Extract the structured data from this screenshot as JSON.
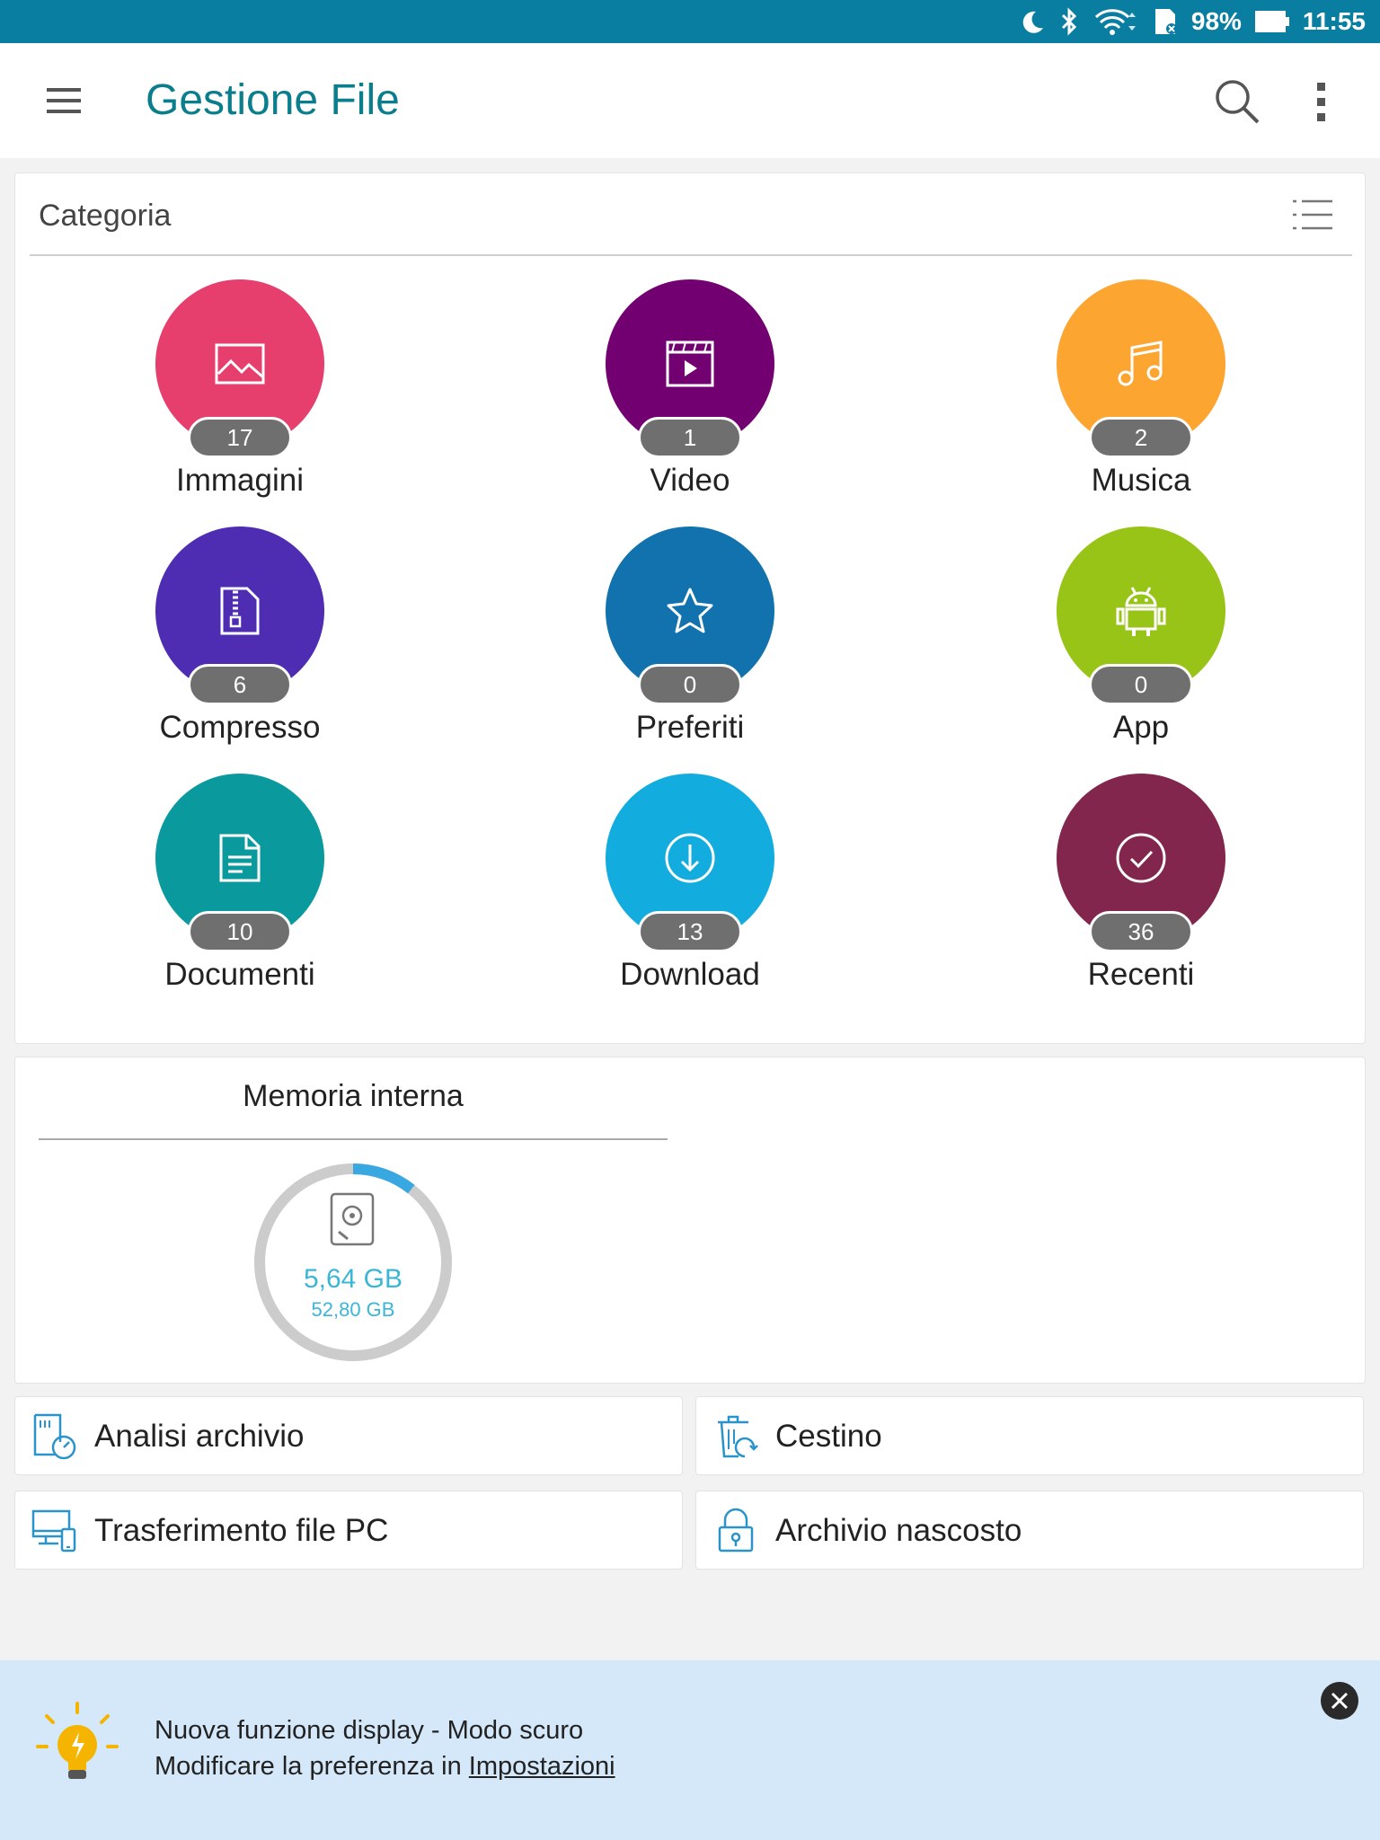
{
  "status_bar": {
    "battery": "98%",
    "time": "11:55",
    "icons": [
      "moon-icon",
      "bluetooth-icon",
      "wifi-icon",
      "sd-card-icon",
      "battery-icon"
    ]
  },
  "app_bar": {
    "title": "Gestione File",
    "icons": [
      "menu-icon",
      "search-icon",
      "more-vert-icon"
    ]
  },
  "category": {
    "title": "Categoria",
    "items": [
      {
        "label": "Immagini",
        "count": "17",
        "color": "#e63e6d",
        "icon": "image-icon"
      },
      {
        "label": "Video",
        "count": "1",
        "color": "#720071",
        "icon": "video-icon"
      },
      {
        "label": "Musica",
        "count": "2",
        "color": "#fca531",
        "icon": "music-icon"
      },
      {
        "label": "Compresso",
        "count": "6",
        "color": "#4f2db3",
        "icon": "zip-icon"
      },
      {
        "label": "Preferiti",
        "count": "0",
        "color": "#1172ae",
        "icon": "star-icon"
      },
      {
        "label": "App",
        "count": "0",
        "color": "#98c317",
        "icon": "android-icon"
      },
      {
        "label": "Documenti",
        "count": "10",
        "color": "#0a9a9d",
        "icon": "document-icon"
      },
      {
        "label": "Download",
        "count": "13",
        "color": "#13acdf",
        "icon": "download-icon"
      },
      {
        "label": "Recenti",
        "count": "36",
        "color": "#82264d",
        "icon": "recent-icon"
      }
    ]
  },
  "memory": {
    "title": "Memoria interna",
    "used": "5,64 GB",
    "total": "52,80 GB",
    "used_fraction": 0.107,
    "ring_color": "#cccccc",
    "used_color": "#3aa8e0"
  },
  "tools": [
    {
      "label": "Analisi archivio",
      "icon": "storage-analysis-icon"
    },
    {
      "label": "Cestino",
      "icon": "recycle-bin-icon"
    },
    {
      "label": "Trasferimento file PC",
      "icon": "pc-transfer-icon"
    },
    {
      "label": "Archivio nascosto",
      "icon": "hidden-lock-icon"
    }
  ],
  "tip": {
    "line1": "Nuova funzione display - Modo scuro",
    "line2_prefix": "Modificare la preferenza in ",
    "line2_link": "Impostazioni"
  }
}
